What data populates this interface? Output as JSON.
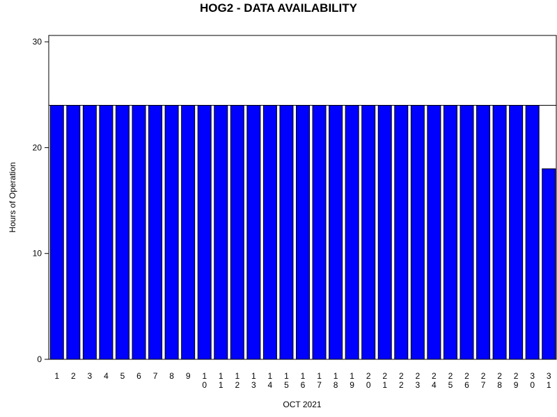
{
  "chart_data": {
    "type": "bar",
    "title": "HOG2 - DATA AVAILABILITY",
    "x_label": "OCT 2021",
    "y_label": "Hours of Operation",
    "categories": [
      "1",
      "2",
      "3",
      "4",
      "5",
      "6",
      "7",
      "8",
      "9",
      "10",
      "11",
      "12",
      "13",
      "14",
      "15",
      "16",
      "17",
      "18",
      "19",
      "20",
      "21",
      "22",
      "23",
      "24",
      "25",
      "26",
      "27",
      "28",
      "29",
      "30",
      "31"
    ],
    "values": [
      24,
      24,
      24,
      24,
      24,
      24,
      24,
      24,
      24,
      24,
      24,
      24,
      24,
      24,
      24,
      24,
      24,
      24,
      24,
      24,
      24,
      24,
      24,
      24,
      24,
      24,
      24,
      24,
      24,
      24,
      18
    ],
    "color": "#0000ff",
    "reference_line": 24,
    "ylim": [
      0,
      30.6
    ],
    "yticks": [
      0,
      10,
      20,
      30
    ]
  }
}
